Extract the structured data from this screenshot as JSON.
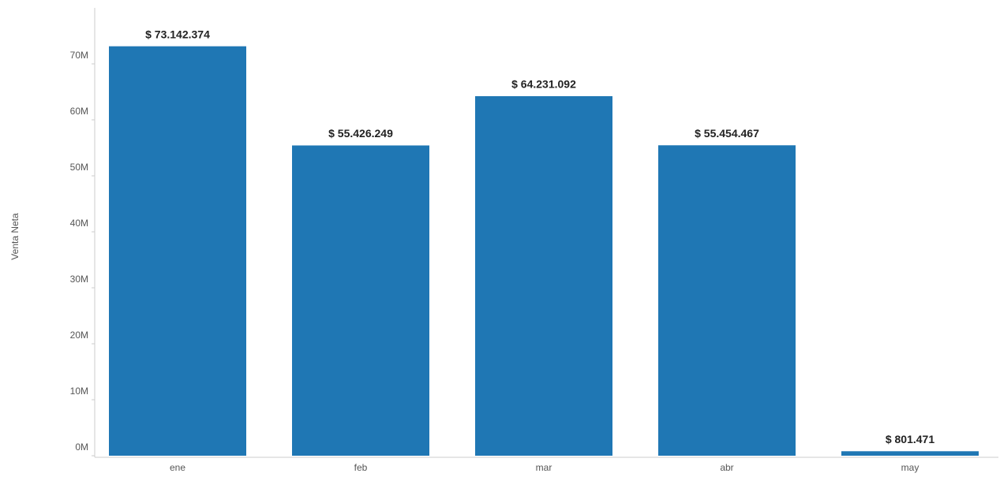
{
  "chart_data": {
    "type": "bar",
    "y_label": "Venta Neta",
    "categories": [
      "ene",
      "feb",
      "mar",
      "abr",
      "may"
    ],
    "values": [
      73142374,
      55426249,
      64231092,
      55454467,
      801471
    ],
    "value_labels": [
      "$ 73.142.374",
      "$ 55.426.249",
      "$ 64.231.092",
      "$ 55.454.467",
      "$ 801.471"
    ],
    "color": "#1f77b4",
    "ylim": [
      0,
      80000000
    ],
    "yticks": [
      {
        "value": 0,
        "label": "0M"
      },
      {
        "value": 10000000,
        "label": "10M"
      },
      {
        "value": 20000000,
        "label": "20M"
      },
      {
        "value": 30000000,
        "label": "30M"
      },
      {
        "value": 40000000,
        "label": "40M"
      },
      {
        "value": 50000000,
        "label": "50M"
      },
      {
        "value": 60000000,
        "label": "60M"
      },
      {
        "value": 70000000,
        "label": "70M"
      }
    ]
  }
}
